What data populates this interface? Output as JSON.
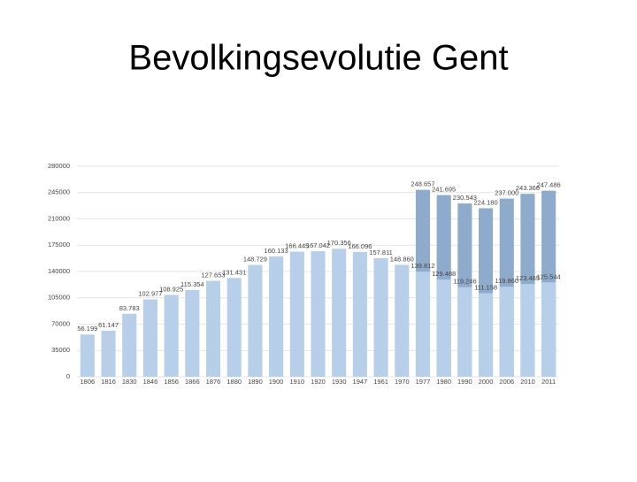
{
  "chart_data": {
    "type": "bar",
    "title": "Bevolkingsevolutie Gent",
    "categories": [
      "1806",
      "1816",
      "1830",
      "1846",
      "1856",
      "1866",
      "1876",
      "1880",
      "1890",
      "1900",
      "1910",
      "1920",
      "1930",
      "1947",
      "1961",
      "1970",
      "1977",
      "1980",
      "1990",
      "2000",
      "2006",
      "2010",
      "2011"
    ],
    "series": [
      {
        "color": "#b7cfe9",
        "values": [
          56199,
          61147,
          83783,
          102977,
          108925,
          115354,
          127653,
          131431,
          148729,
          160133,
          166445,
          167042,
          170356,
          166096,
          157811,
          148860,
          139812,
          129488,
          119246,
          111158,
          119860,
          123465,
          125544
        ],
        "value_labels": [
          "56.199",
          "61.147",
          "83.783",
          "102.977",
          "108.925",
          "115.354",
          "127.653",
          "131.431",
          "148.729",
          "160.133",
          "166.445",
          "167.042",
          "170.356",
          "166.096",
          "157.811",
          "148.860",
          "139.812",
          "129.488",
          "119.246",
          "111.158",
          "119.860",
          "123.465",
          "125.544"
        ]
      },
      {
        "color": "#8fabcb",
        "values": [
          null,
          null,
          null,
          null,
          null,
          null,
          null,
          null,
          null,
          null,
          null,
          null,
          null,
          null,
          null,
          null,
          248657,
          241695,
          230543,
          224180,
          237000,
          243366,
          247486
        ],
        "value_labels": [
          null,
          null,
          null,
          null,
          null,
          null,
          null,
          null,
          null,
          null,
          null,
          null,
          null,
          null,
          null,
          null,
          "248.657",
          "241.695",
          "230.543",
          "224.180",
          "237.000",
          "243.366",
          "247.486"
        ]
      }
    ],
    "ylim": [
      0,
      280000
    ],
    "yticks": [
      0,
      35000,
      70000,
      105000,
      140000,
      175000,
      210000,
      245000,
      280000
    ],
    "grid": true
  }
}
